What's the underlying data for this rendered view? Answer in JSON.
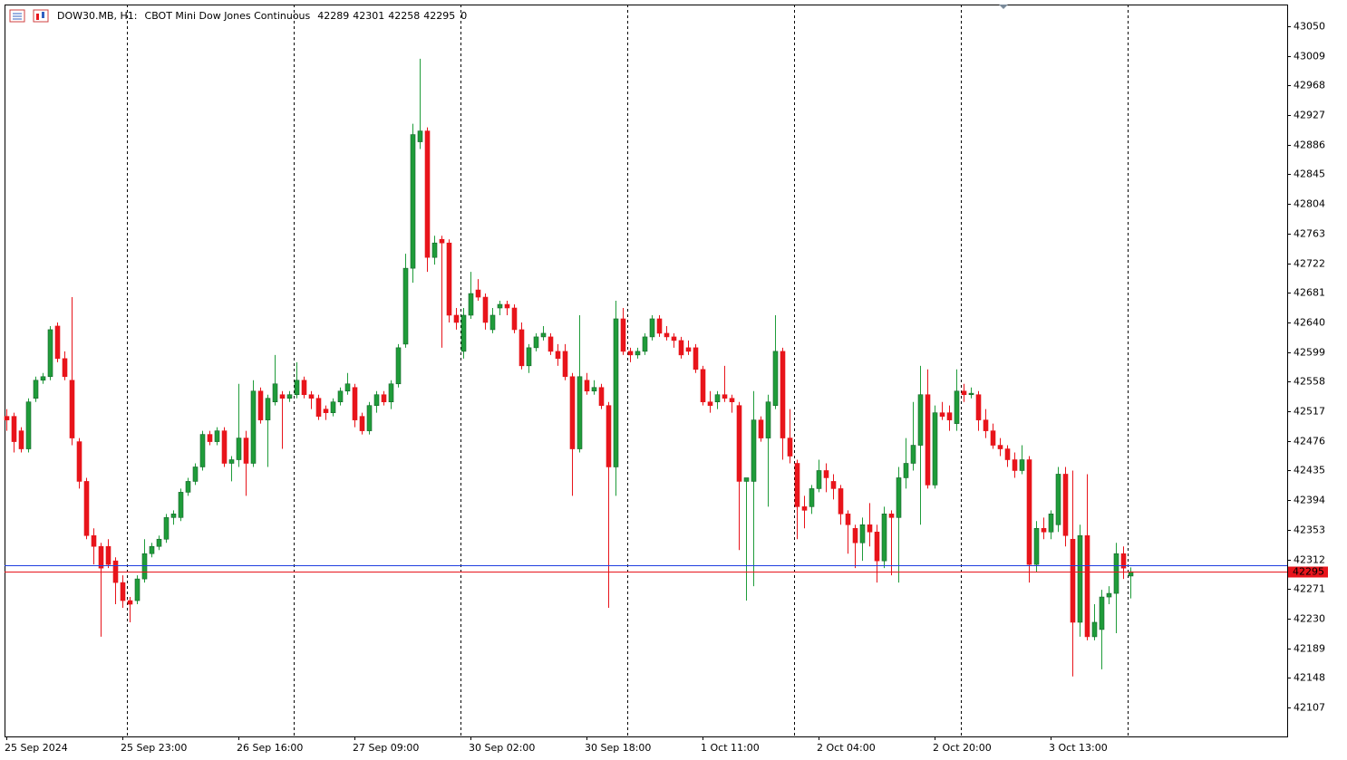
{
  "chart_data": {
    "type": "candlestick",
    "title": "DOW30.MB, H1:",
    "subtitle": "CBOT Mini Dow Jones Continuous",
    "quote": [
      42289,
      42301,
      42258,
      42295
    ],
    "tick_volume": 0,
    "up_color": "#1f9c3a",
    "down_color": "#e8141b",
    "bid": 42295,
    "bid_color": "#e8141b",
    "ask": 42304,
    "ask_color": "#1f3fe0",
    "ylim": [
      42067,
      43080
    ],
    "yticks": [
      42107,
      42148,
      42189,
      42230,
      42271,
      42312,
      42353,
      42394,
      42435,
      42476,
      42517,
      42558,
      42599,
      42640,
      42681,
      42722,
      42763,
      42804,
      42845,
      42886,
      42927,
      42968,
      43009,
      43050
    ],
    "categories": [
      "25 Sep 2024",
      null,
      null,
      null,
      null,
      null,
      null,
      null,
      null,
      null,
      null,
      null,
      null,
      null,
      null,
      null,
      "25 Sep 23:00",
      null,
      null,
      null,
      null,
      null,
      null,
      null,
      null,
      null,
      null,
      null,
      null,
      null,
      null,
      null,
      "26 Sep 16:00",
      null,
      null,
      null,
      null,
      null,
      null,
      null,
      null,
      null,
      null,
      null,
      null,
      null,
      null,
      null,
      "27 Sep 09:00",
      null,
      null,
      null,
      null,
      null,
      null,
      null,
      null,
      null,
      null,
      null,
      null,
      null,
      null,
      null,
      "30 Sep 02:00",
      null,
      null,
      null,
      null,
      null,
      null,
      null,
      null,
      null,
      null,
      null,
      null,
      null,
      null,
      null,
      "30 Sep 18:00",
      null,
      null,
      null,
      null,
      null,
      null,
      null,
      null,
      null,
      null,
      null,
      null,
      null,
      null,
      null,
      "1 Oct 11:00",
      null,
      null,
      null,
      null,
      null,
      null,
      null,
      null,
      null,
      null,
      null,
      null,
      null,
      null,
      null,
      "2 Oct 04:00",
      null,
      null,
      null,
      null,
      null,
      null,
      null,
      null,
      null,
      null,
      null,
      null,
      null,
      null,
      null,
      "2 Oct 20:00",
      null,
      null,
      null,
      null,
      null,
      null,
      null,
      null,
      null,
      null,
      null,
      null,
      null,
      null,
      null,
      "3 Oct 13:00",
      null,
      null,
      null,
      null,
      null,
      null,
      null,
      null,
      null,
      null,
      null
    ],
    "ohlc": [
      [
        42510,
        42520,
        42490,
        42505
      ],
      [
        42510,
        42515,
        42460,
        42475
      ],
      [
        42490,
        42495,
        42460,
        42465
      ],
      [
        42465,
        42535,
        42460,
        42530
      ],
      [
        42535,
        42565,
        42530,
        42560
      ],
      [
        42560,
        42570,
        42555,
        42565
      ],
      [
        42565,
        42635,
        42560,
        42630
      ],
      [
        42635,
        42640,
        42585,
        42590
      ],
      [
        42590,
        42600,
        42560,
        42565
      ],
      [
        42560,
        42675,
        42470,
        42480
      ],
      [
        42475,
        42480,
        42410,
        42420
      ],
      [
        42420,
        42425,
        42340,
        42345
      ],
      [
        42345,
        42355,
        42305,
        42330
      ],
      [
        42330,
        42335,
        42205,
        42300
      ],
      [
        42330,
        42340,
        42300,
        42305
      ],
      [
        42310,
        42315,
        42250,
        42280
      ],
      [
        42280,
        42290,
        42245,
        42255
      ],
      [
        42255,
        42260,
        42225,
        42250
      ],
      [
        42255,
        42290,
        42250,
        42285
      ],
      [
        42285,
        42340,
        42280,
        42320
      ],
      [
        42320,
        42335,
        42315,
        42330
      ],
      [
        42330,
        42345,
        42325,
        42340
      ],
      [
        42340,
        42375,
        42335,
        42370
      ],
      [
        42370,
        42380,
        42360,
        42375
      ],
      [
        42370,
        42410,
        42365,
        42405
      ],
      [
        42405,
        42425,
        42400,
        42420
      ],
      [
        42420,
        42445,
        42415,
        42440
      ],
      [
        42440,
        42490,
        42435,
        42485
      ],
      [
        42485,
        42490,
        42470,
        42475
      ],
      [
        42475,
        42495,
        42470,
        42490
      ],
      [
        42490,
        42495,
        42440,
        42445
      ],
      [
        42445,
        42455,
        42420,
        42450
      ],
      [
        42450,
        42555,
        42440,
        42480
      ],
      [
        42480,
        42490,
        42400,
        42445
      ],
      [
        42445,
        42560,
        42440,
        42545
      ],
      [
        42545,
        42550,
        42500,
        42505
      ],
      [
        42505,
        42540,
        42440,
        42535
      ],
      [
        42530,
        42595,
        42525,
        42555
      ],
      [
        42540,
        42545,
        42465,
        42535
      ],
      [
        42535,
        42545,
        42530,
        42540
      ],
      [
        42540,
        42585,
        42535,
        42560
      ],
      [
        42560,
        42565,
        42535,
        42540
      ],
      [
        42540,
        42545,
        42520,
        42535
      ],
      [
        42535,
        42540,
        42505,
        42510
      ],
      [
        42520,
        42525,
        42505,
        42515
      ],
      [
        42515,
        42535,
        42510,
        42530
      ],
      [
        42530,
        42550,
        42525,
        42545
      ],
      [
        42545,
        42570,
        42540,
        42555
      ],
      [
        42550,
        42555,
        42495,
        42505
      ],
      [
        42510,
        42515,
        42485,
        42490
      ],
      [
        42490,
        42530,
        42485,
        42525
      ],
      [
        42525,
        42545,
        42515,
        42540
      ],
      [
        42540,
        42545,
        42525,
        42530
      ],
      [
        42530,
        42560,
        42520,
        42555
      ],
      [
        42555,
        42610,
        42550,
        42605
      ],
      [
        42610,
        42735,
        42605,
        42715
      ],
      [
        42715,
        42915,
        42695,
        42900
      ],
      [
        42890,
        43005,
        42880,
        42905
      ],
      [
        42905,
        42910,
        42710,
        42730
      ],
      [
        42730,
        42760,
        42720,
        42750
      ],
      [
        42755,
        42760,
        42605,
        42750
      ],
      [
        42750,
        42755,
        42640,
        42650
      ],
      [
        42650,
        42660,
        42630,
        42640
      ],
      [
        42600,
        42660,
        42590,
        42650
      ],
      [
        42650,
        42710,
        42645,
        42680
      ],
      [
        42685,
        42700,
        42670,
        42675
      ],
      [
        42675,
        42680,
        42630,
        42640
      ],
      [
        42630,
        42660,
        42625,
        42650
      ],
      [
        42660,
        42670,
        42650,
        42665
      ],
      [
        42665,
        42670,
        42650,
        42660
      ],
      [
        42660,
        42665,
        42625,
        42630
      ],
      [
        42630,
        42640,
        42575,
        42580
      ],
      [
        42580,
        42610,
        42570,
        42605
      ],
      [
        42605,
        42625,
        42600,
        42620
      ],
      [
        42620,
        42635,
        42615,
        42625
      ],
      [
        42620,
        42625,
        42595,
        42600
      ],
      [
        42600,
        42610,
        42580,
        42590
      ],
      [
        42600,
        42610,
        42560,
        42565
      ],
      [
        42565,
        42570,
        42400,
        42465
      ],
      [
        42465,
        42650,
        42460,
        42565
      ],
      [
        42560,
        42570,
        42540,
        42545
      ],
      [
        42545,
        42560,
        42540,
        42550
      ],
      [
        42550,
        42555,
        42520,
        42525
      ],
      [
        42525,
        42530,
        42245,
        42440
      ],
      [
        42440,
        42670,
        42400,
        42645
      ],
      [
        42645,
        42660,
        42595,
        42600
      ],
      [
        42600,
        42605,
        42585,
        42595
      ],
      [
        42595,
        42605,
        42590,
        42600
      ],
      [
        42600,
        42625,
        42595,
        42620
      ],
      [
        42620,
        42650,
        42615,
        42645
      ],
      [
        42645,
        42650,
        42620,
        42625
      ],
      [
        42625,
        42635,
        42615,
        42620
      ],
      [
        42620,
        42625,
        42605,
        42615
      ],
      [
        42615,
        42620,
        42590,
        42595
      ],
      [
        42605,
        42615,
        42595,
        42600
      ],
      [
        42605,
        42610,
        42570,
        42575
      ],
      [
        42575,
        42580,
        42525,
        42530
      ],
      [
        42530,
        42545,
        42515,
        42525
      ],
      [
        42530,
        42545,
        42520,
        42540
      ],
      [
        42540,
        42580,
        42530,
        42535
      ],
      [
        42535,
        42540,
        42515,
        42530
      ],
      [
        42525,
        42530,
        42325,
        42420
      ],
      [
        42420,
        42425,
        42255,
        42425
      ],
      [
        42420,
        42545,
        42275,
        42505
      ],
      [
        42505,
        42510,
        42475,
        42480
      ],
      [
        42480,
        42540,
        42385,
        42530
      ],
      [
        42525,
        42650,
        42520,
        42600
      ],
      [
        42600,
        42605,
        42450,
        42480
      ],
      [
        42480,
        42520,
        42445,
        42455
      ],
      [
        42445,
        42450,
        42340,
        42385
      ],
      [
        42385,
        42400,
        42355,
        42380
      ],
      [
        42385,
        42415,
        42375,
        42410
      ],
      [
        42410,
        42450,
        42405,
        42435
      ],
      [
        42435,
        42445,
        42405,
        42425
      ],
      [
        42420,
        42430,
        42395,
        42410
      ],
      [
        42410,
        42415,
        42360,
        42375
      ],
      [
        42375,
        42380,
        42320,
        42360
      ],
      [
        42355,
        42360,
        42300,
        42335
      ],
      [
        42335,
        42370,
        42310,
        42360
      ],
      [
        42360,
        42390,
        42330,
        42350
      ],
      [
        42350,
        42360,
        42280,
        42310
      ],
      [
        42310,
        42385,
        42300,
        42375
      ],
      [
        42375,
        42380,
        42290,
        42370
      ],
      [
        42370,
        42440,
        42280,
        42425
      ],
      [
        42425,
        42480,
        42410,
        42445
      ],
      [
        42445,
        42530,
        42435,
        42470
      ],
      [
        42470,
        42580,
        42360,
        42540
      ],
      [
        42540,
        42575,
        42410,
        42415
      ],
      [
        42415,
        42525,
        42410,
        42515
      ],
      [
        42515,
        42530,
        42505,
        42510
      ],
      [
        42515,
        42525,
        42490,
        42505
      ],
      [
        42500,
        42575,
        42490,
        42545
      ],
      [
        42545,
        42555,
        42530,
        42540
      ],
      [
        42540,
        42550,
        42535,
        42542
      ],
      [
        42540,
        42545,
        42490,
        42505
      ],
      [
        42505,
        42520,
        42480,
        42490
      ],
      [
        42490,
        42500,
        42465,
        42470
      ],
      [
        42470,
        42480,
        42455,
        42465
      ],
      [
        42465,
        42470,
        42440,
        42450
      ],
      [
        42450,
        42460,
        42425,
        42435
      ],
      [
        42435,
        42470,
        42430,
        42450
      ],
      [
        42450,
        42455,
        42280,
        42305
      ],
      [
        42305,
        42365,
        42295,
        42355
      ],
      [
        42355,
        42370,
        42340,
        42350
      ],
      [
        42350,
        42380,
        42340,
        42375
      ],
      [
        42360,
        42440,
        42350,
        42430
      ],
      [
        42430,
        42440,
        42330,
        42345
      ],
      [
        42340,
        42435,
        42150,
        42225
      ],
      [
        42225,
        42360,
        42205,
        42345
      ],
      [
        42345,
        42430,
        42200,
        42205
      ],
      [
        42205,
        42250,
        42200,
        42225
      ],
      [
        42215,
        42270,
        42160,
        42260
      ],
      [
        42260,
        42275,
        42250,
        42265
      ],
      [
        42265,
        42335,
        42210,
        42320
      ],
      [
        42320,
        42330,
        42285,
        42300
      ],
      [
        42289,
        42301,
        42258,
        42295
      ]
    ]
  }
}
